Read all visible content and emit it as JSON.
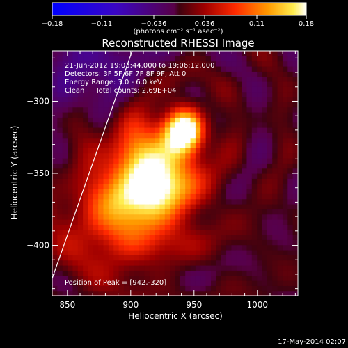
{
  "colorbar": {
    "tick_labels": [
      "−0.18",
      "−0.11",
      "−0.036",
      "0.036",
      "0.11",
      "0.18"
    ],
    "unit_label": "(photons cm⁻² s⁻¹ asec⁻²)"
  },
  "chart_data": {
    "type": "heatmap",
    "title": "Reconstructed RHESSI Image",
    "xlabel": "Heliocentric X (arcsec)",
    "ylabel": "Heliocentric Y (arcsec)",
    "xlim": [
      838,
      1032
    ],
    "ylim": [
      -435,
      -265
    ],
    "x_ticks": [
      850,
      900,
      950,
      1000
    ],
    "y_ticks": [
      -300,
      -350,
      -400
    ],
    "x_tick_labels": [
      "850",
      "900",
      "950",
      "1000"
    ],
    "y_tick_labels": [
      "−300",
      "−350",
      "−400"
    ],
    "color_range": [
      -0.18,
      0.18
    ],
    "peak": [
      942,
      -320
    ],
    "info_lines": [
      "21-Jun-2012 19:03:44.000 to 19:06:12.000",
      "Detectors: 3F 5F 6F 7F 8F 9F, Att 0",
      "Energy Range: 3.0 - 6.0 keV",
      "Clean     Total counts: 2.69E+04"
    ],
    "peak_label": "Position of Peak = [942,-320]",
    "sources": [
      {
        "x": 942,
        "y": -320,
        "amp": 0.18,
        "sx": 11,
        "sy": 11
      },
      {
        "x": 925,
        "y": -345,
        "amp": 0.1,
        "sx": 20,
        "sy": 17
      },
      {
        "x": 908,
        "y": -338,
        "amp": 0.07,
        "sx": 25,
        "sy": 22
      },
      {
        "x": 918,
        "y": -370,
        "amp": 0.08,
        "sx": 20,
        "sy": 13
      },
      {
        "x": 893,
        "y": -365,
        "amp": 0.05,
        "sx": 15,
        "sy": 13
      },
      {
        "x": 900,
        "y": -380,
        "amp": 0.04,
        "sx": 40,
        "sy": 25
      },
      {
        "x": 885,
        "y": -395,
        "amp": 0.04,
        "sx": 30,
        "sy": 20
      }
    ]
  },
  "footer": {
    "date": "17-May-2014 02:07"
  }
}
